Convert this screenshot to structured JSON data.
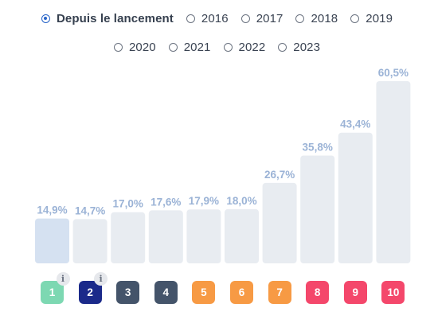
{
  "period_filter": {
    "options": [
      {
        "label": "Depuis le lancement",
        "selected": true
      },
      {
        "label": "2016",
        "selected": false
      },
      {
        "label": "2017",
        "selected": false
      },
      {
        "label": "2018",
        "selected": false
      },
      {
        "label": "2019",
        "selected": false
      },
      {
        "label": "2020",
        "selected": false
      },
      {
        "label": "2021",
        "selected": false
      },
      {
        "label": "2022",
        "selected": false
      },
      {
        "label": "2023",
        "selected": false
      }
    ]
  },
  "chart_data": {
    "type": "bar",
    "categories": [
      "1",
      "2",
      "3",
      "4",
      "5",
      "6",
      "7",
      "8",
      "9",
      "10"
    ],
    "values": [
      14.9,
      14.7,
      17.0,
      17.6,
      17.9,
      18.0,
      26.7,
      35.8,
      43.4,
      60.5
    ],
    "value_labels": [
      "14,9%",
      "14,7%",
      "17,0%",
      "17,6%",
      "17,9%",
      "18,0%",
      "26,7%",
      "35,8%",
      "43,4%",
      "60,5%"
    ],
    "highlighted_index": 0,
    "title": "",
    "xlabel": "",
    "ylabel": "",
    "grid": false,
    "colors": {
      "bar": "#e8ecf1",
      "bar_highlight": "#d5e1f1",
      "value_label": "#9bb3d6"
    }
  },
  "badges": [
    {
      "label": "1",
      "color": "#7dd8b2",
      "info": true
    },
    {
      "label": "2",
      "color": "#1b2a8a",
      "info": true
    },
    {
      "label": "3",
      "color": "#44546a",
      "info": false
    },
    {
      "label": "4",
      "color": "#44546a",
      "info": false
    },
    {
      "label": "5",
      "color": "#f79a44",
      "info": false
    },
    {
      "label": "6",
      "color": "#f79a44",
      "info": false
    },
    {
      "label": "7",
      "color": "#f79a44",
      "info": false
    },
    {
      "label": "8",
      "color": "#f4476b",
      "info": false
    },
    {
      "label": "9",
      "color": "#f4476b",
      "info": false
    },
    {
      "label": "10",
      "color": "#f4476b",
      "info": false
    }
  ],
  "info_icon": {
    "glyph": "i",
    "icon": "info-icon"
  }
}
